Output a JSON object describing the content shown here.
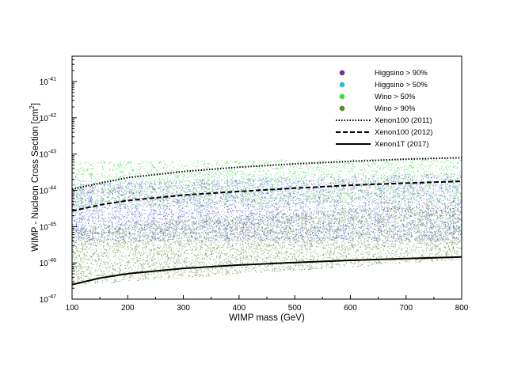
{
  "chart_data": {
    "type": "scatter",
    "title": "",
    "xlabel": "WIMP mass (GeV)",
    "ylabel": "WIMP - Nucleon Cross Section [cm",
    "ylabel_sup": "2",
    "ylabel_close": "]",
    "xlim": [
      100,
      800
    ],
    "ylim_log10": [
      -47,
      -40.3
    ],
    "y_scale": "log",
    "grid": false,
    "legend_position": "top-right",
    "x_ticks": [
      100,
      200,
      300,
      400,
      500,
      600,
      700,
      800
    ],
    "x_tick_labels": [
      "100",
      "200",
      "300",
      "400",
      "500",
      "600",
      "700",
      "800"
    ],
    "y_ticks_log10": [
      -47,
      -46,
      -45,
      -44,
      -43,
      -42,
      -41
    ],
    "y_tick_labels": [
      {
        "base": "10",
        "exp": "-47"
      },
      {
        "base": "10",
        "exp": "-46"
      },
      {
        "base": "10",
        "exp": "-45"
      },
      {
        "base": "10",
        "exp": "-44"
      },
      {
        "base": "10",
        "exp": "-43"
      },
      {
        "base": "10",
        "exp": "-42"
      },
      {
        "base": "10",
        "exp": "-41"
      }
    ],
    "scatter_series": [
      {
        "name": "Higgsino > 90%",
        "color": "#7b2f9e",
        "region_log10": {
          "x": [
            100,
            800
          ],
          "y_low_at_100": -45.5,
          "y_low_at_800": -45.6,
          "y_high_at_100": -43.9,
          "y_high_at_800": -43.7
        }
      },
      {
        "name": "Higgsino > 50%",
        "color": "#2fb8e8",
        "region_log10": {
          "x": [
            100,
            800
          ],
          "y_low_at_100": -45.3,
          "y_low_at_800": -45.4,
          "y_high_at_100": -43.5,
          "y_high_at_800": -43.3
        }
      },
      {
        "name": "Wino > 50%",
        "color": "#33e033",
        "region_log10": {
          "x": [
            100,
            800
          ],
          "y_low_at_100": -44.5,
          "y_low_at_800": -44.3,
          "y_high_at_100": -43.2,
          "y_high_at_800": -43.1
        }
      },
      {
        "name": "Wino > 90%",
        "color": "#5b8a2e",
        "region_log10": {
          "x": [
            100,
            800
          ],
          "y_low_at_100": -46.6,
          "y_low_at_800": -45.9,
          "y_high_at_100": -45.0,
          "y_high_at_800": -44.3
        }
      }
    ],
    "blue_band": {
      "color": "#4a55c8",
      "y_low_log10": -45.4,
      "y_high_log10": -43.8
    },
    "limit_curves": [
      {
        "name": "Xenon100 (2011)",
        "style": "dotted",
        "x": [
          100,
          150,
          200,
          300,
          400,
          500,
          600,
          700,
          800
        ],
        "y_log10": [
          -43.97,
          -43.8,
          -43.65,
          -43.48,
          -43.36,
          -43.27,
          -43.2,
          -43.14,
          -43.1
        ]
      },
      {
        "name": "Xenon100 (2012)",
        "style": "dashed",
        "x": [
          100,
          150,
          200,
          300,
          400,
          500,
          600,
          700,
          800
        ],
        "y_log10": [
          -44.57,
          -44.4,
          -44.28,
          -44.13,
          -44.03,
          -43.94,
          -43.86,
          -43.8,
          -43.75
        ]
      },
      {
        "name": "Xenon1T (2017)",
        "style": "solid",
        "x": [
          100,
          150,
          200,
          300,
          400,
          500,
          600,
          700,
          800
        ],
        "y_log10": [
          -46.6,
          -46.42,
          -46.3,
          -46.15,
          -46.06,
          -45.99,
          -45.93,
          -45.88,
          -45.84
        ]
      }
    ]
  }
}
